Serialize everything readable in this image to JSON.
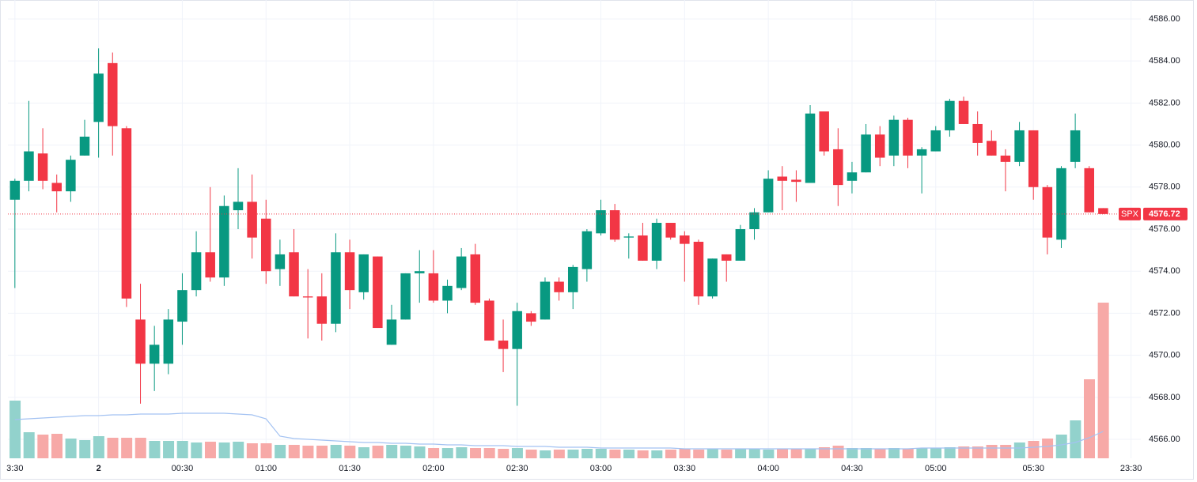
{
  "chart_data": {
    "type": "candlestick",
    "symbol": "SPX",
    "last_price": 4576.72,
    "up_color": "#089981",
    "down_color": "#f23645",
    "open": [
      4577.4,
      4578.3,
      4579.6,
      4578.2,
      4577.8,
      4579.5,
      4581.1,
      4583.9,
      4580.8,
      4571.7,
      4569.6,
      4569.6,
      4571.6,
      4573.1,
      4574.9,
      4573.7,
      4576.9,
      4577.3,
      4576.5,
      4574.1,
      4574.9,
      4572.8,
      4572.8,
      4571.5,
      4574.9,
      4573.0,
      4574.7,
      4570.5,
      4571.7,
      4573.9,
      4573.9,
      4572.6,
      4573.2,
      4574.8,
      4572.6,
      4570.7,
      4570.3,
      4572.0,
      4571.7,
      4573.5,
      4573.0,
      4574.1,
      4575.8,
      4576.9,
      4575.6,
      4575.7,
      4574.5,
      4576.3,
      4575.7,
      4575.4,
      4572.8,
      4574.8,
      4574.5,
      4576.0,
      4576.8,
      4578.5,
      4578.35,
      4578.2,
      4581.6,
      4579.8,
      4578.3,
      4578.7,
      4580.5,
      4579.5,
      4581.2,
      4579.5,
      4579.7,
      4580.7,
      4582.1,
      4581.0,
      4580.2,
      4579.5,
      4579.2,
      4580.7,
      4578.0,
      4575.5,
      4579.2,
      4578.9,
      4577.0
    ],
    "high": [
      4578.4,
      4582.1,
      4580.8,
      4578.6,
      4579.5,
      4581.2,
      4584.6,
      4584.4,
      4580.9,
      4573.4,
      4571.4,
      4572.2,
      4573.9,
      4575.9,
      4578.0,
      4577.6,
      4578.9,
      4578.6,
      4577.4,
      4575.5,
      4576.0,
      4574.1,
      4573.9,
      4575.8,
      4575.5,
      4574.8,
      4574.7,
      4572.4,
      4573.9,
      4575.0,
      4575.0,
      4573.6,
      4575.1,
      4575.3,
      4572.7,
      4571.7,
      4572.5,
      4572.1,
      4573.7,
      4573.7,
      4574.3,
      4576.0,
      4577.4,
      4577.2,
      4575.8,
      4576.3,
      4576.5,
      4576.3,
      4575.9,
      4575.5,
      4574.6,
      4574.8,
      4576.2,
      4577.0,
      4578.8,
      4579.0,
      4578.8,
      4581.9,
      4581.6,
      4580.8,
      4579.2,
      4581.0,
      4580.9,
      4581.4,
      4581.3,
      4579.9,
      4580.9,
      4582.2,
      4582.3,
      4581.6,
      4580.7,
      4579.8,
      4581.1,
      4580.7,
      4578.1,
      4579.0,
      4581.5,
      4579.0,
      4577.0
    ],
    "low": [
      4573.2,
      4577.8,
      4577.9,
      4576.8,
      4577.3,
      4579.5,
      4579.4,
      4579.5,
      4572.3,
      4567.7,
      4568.3,
      4569.1,
      4570.5,
      4572.8,
      4573.5,
      4573.3,
      4576.0,
      4574.6,
      4573.4,
      4573.3,
      4572.8,
      4570.8,
      4570.7,
      4571.1,
      4572.2,
      4572.65,
      4571.3,
      4570.5,
      4571.7,
      4572.5,
      4572.5,
      4572.0,
      4573.1,
      4572.4,
      4570.7,
      4569.2,
      4567.6,
      4571.4,
      4571.7,
      4572.6,
      4572.2,
      4573.5,
      4575.7,
      4575.4,
      4574.6,
      4574.5,
      4574.1,
      4575.5,
      4573.5,
      4572.4,
      4572.7,
      4573.5,
      4574.5,
      4575.5,
      4576.8,
      4576.9,
      4577.3,
      4578.2,
      4579.5,
      4577.1,
      4577.7,
      4578.7,
      4579.0,
      4579.0,
      4578.9,
      4577.7,
      4579.7,
      4580.4,
      4581.0,
      4579.5,
      4579.5,
      4577.8,
      4579.0,
      4577.4,
      4574.8,
      4575.1,
      4578.9,
      4576.8,
      4576.72
    ],
    "close": [
      4578.3,
      4579.7,
      4578.3,
      4577.8,
      4579.3,
      4580.4,
      4583.4,
      4580.9,
      4572.7,
      4569.6,
      4570.5,
      4571.7,
      4573.1,
      4574.9,
      4573.7,
      4577.1,
      4577.3,
      4575.6,
      4574.0,
      4574.8,
      4572.8,
      4572.75,
      4571.5,
      4574.9,
      4573.1,
      4574.8,
      4571.3,
      4571.7,
      4573.9,
      4574.0,
      4572.6,
      4573.3,
      4574.7,
      4572.5,
      4570.7,
      4570.3,
      4572.1,
      4571.6,
      4573.5,
      4573.0,
      4574.2,
      4575.9,
      4576.9,
      4575.5,
      4575.65,
      4574.5,
      4576.3,
      4575.6,
      4575.3,
      4572.8,
      4574.6,
      4574.5,
      4576.0,
      4576.8,
      4578.4,
      4578.3,
      4578.25,
      4581.5,
      4579.7,
      4578.1,
      4578.7,
      4580.5,
      4579.4,
      4581.2,
      4579.5,
      4579.8,
      4580.7,
      4582.1,
      4581.0,
      4580.1,
      4579.5,
      4579.2,
      4580.7,
      4578.0,
      4575.6,
      4578.9,
      4580.7,
      4576.8,
      4576.72
    ],
    "volume": {
      "up_color": "#92d2cc",
      "down_color": "#f7a9a7",
      "ylim": [
        0,
        556
      ],
      "values": [
        73,
        33,
        30,
        31,
        25,
        23,
        28,
        26,
        26,
        26,
        22,
        22,
        22,
        20,
        21,
        20,
        21,
        19,
        19,
        17,
        17,
        16,
        16,
        17,
        16,
        14,
        16,
        17,
        16,
        15,
        13,
        13,
        14,
        13,
        13,
        12,
        13,
        11,
        10,
        11,
        11,
        12,
        12,
        11,
        11,
        10,
        10,
        11,
        12,
        11,
        12,
        11,
        12,
        12,
        11,
        12,
        12,
        12,
        14,
        16,
        13,
        13,
        12,
        13,
        12,
        13,
        13,
        14,
        15,
        15,
        17,
        17,
        20,
        22,
        25,
        30,
        48,
        100,
        197
      ]
    },
    "volume_ma": {
      "color": "#a3c2f2",
      "values": [
        49,
        50,
        51,
        52,
        53,
        54,
        54,
        55,
        55,
        56,
        56,
        56,
        57,
        57,
        57,
        57,
        56,
        55,
        50,
        28,
        25,
        24,
        23,
        22,
        21,
        20,
        20,
        19,
        19,
        18,
        18,
        17,
        17,
        16,
        16,
        16,
        15,
        15,
        15,
        14,
        14,
        14,
        13,
        13,
        13,
        13,
        13,
        13,
        12,
        12,
        12,
        12,
        12,
        12,
        12,
        12,
        12,
        12,
        12,
        12,
        12,
        12,
        12,
        12,
        12,
        13,
        13,
        13,
        13,
        13,
        13,
        13,
        13,
        14,
        15,
        17,
        20,
        26,
        34
      ]
    },
    "ylim": [
      4565.1,
      4586.9
    ],
    "yticks": [
      {
        "value": 4566,
        "label": "4566.00"
      },
      {
        "value": 4568,
        "label": "4568.00"
      },
      {
        "value": 4570,
        "label": "4570.00"
      },
      {
        "value": 4572,
        "label": "4572.00"
      },
      {
        "value": 4574,
        "label": "4574.00"
      },
      {
        "value": 4576,
        "label": "4576.00"
      },
      {
        "value": 4578,
        "label": "4578.00"
      },
      {
        "value": 4580,
        "label": "4580.00"
      },
      {
        "value": 4582,
        "label": "4582.00"
      },
      {
        "value": 4584,
        "label": "4584.00"
      },
      {
        "value": 4586,
        "label": "4586.00"
      }
    ],
    "xlim": [
      -0.5,
      80.7
    ],
    "xticks": [
      {
        "value": 0,
        "label": "3:30"
      },
      {
        "value": 6,
        "label": "2"
      },
      {
        "value": 12,
        "label": "00:30"
      },
      {
        "value": 18,
        "label": "01:00"
      },
      {
        "value": 24,
        "label": "01:30"
      },
      {
        "value": 30,
        "label": "02:00"
      },
      {
        "value": 36,
        "label": "02:30"
      },
      {
        "value": 42,
        "label": "03:00"
      },
      {
        "value": 48,
        "label": "03:30"
      },
      {
        "value": 54,
        "label": "04:00"
      },
      {
        "value": 60,
        "label": "04:30"
      },
      {
        "value": 66,
        "label": "05:00"
      },
      {
        "value": 73,
        "label": "05:30"
      },
      {
        "value": 80,
        "label": "23:30"
      }
    ],
    "grid": true
  }
}
